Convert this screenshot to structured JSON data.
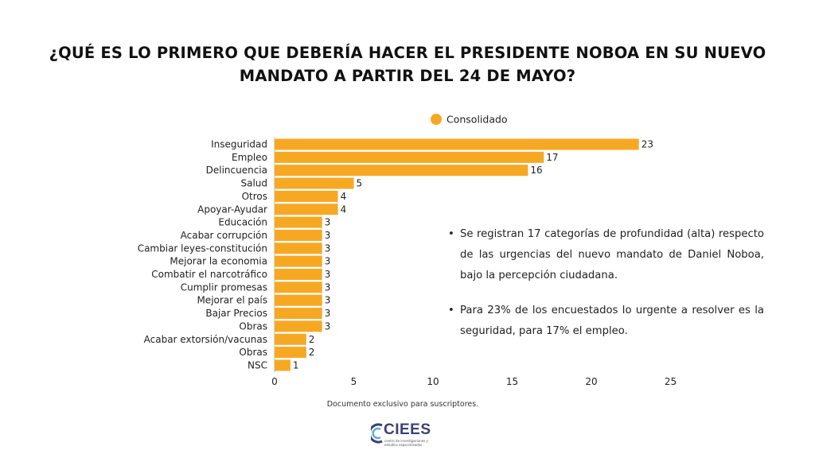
{
  "chart_data": {
    "type": "bar",
    "orientation": "horizontal",
    "title": [
      "¿QUÉ ES LO PRIMERO QUE DEBERÍA HACER EL PRESIDENTE NOBOA EN SU NUEVO",
      "MANDATO A PARTIR DEL 24 DE MAYO?"
    ],
    "legend": "Consolidado",
    "legend_position": "top",
    "categories": [
      "Inseguridad",
      "Empleo",
      "Delincuencia",
      "Salud",
      "Otros",
      "Apoyar-Ayudar",
      "Educación",
      "Acabar corrupción",
      "Cambiar leyes-constitución",
      "Mejorar la economia",
      "Combatir el narcotráfico",
      "Cumplir promesas",
      "Mejorar el país",
      "Bajar Precios",
      "Obras",
      "Acabar extorsión/vacunas",
      "Obras",
      "NSC"
    ],
    "series": [
      {
        "name": "Consolidado",
        "values": [
          23,
          17,
          16,
          5,
          4,
          4,
          3,
          3,
          3,
          3,
          3,
          3,
          3,
          3,
          3,
          2,
          2,
          1
        ]
      }
    ],
    "xticks": [
      0,
      5,
      10,
      15,
      20,
      25
    ],
    "xlim": [
      0,
      25
    ],
    "grid": false,
    "bar_color": "#F7A823"
  },
  "notes": [
    "Se registran 17 categorías de profundidad (alta) respecto de las urgencias del nuevo mandato de Daniel Noboa, bajo la percepción ciudadana.",
    "Para 23% de los encuestados lo urgente a resolver es la seguridad, para 17% el empleo."
  ],
  "bullet": "•",
  "footer": "Documento exclusivo para suscriptores.",
  "logo": {
    "name": "CIEES",
    "tagline": "centro de investigaciones y estudios especializados"
  }
}
